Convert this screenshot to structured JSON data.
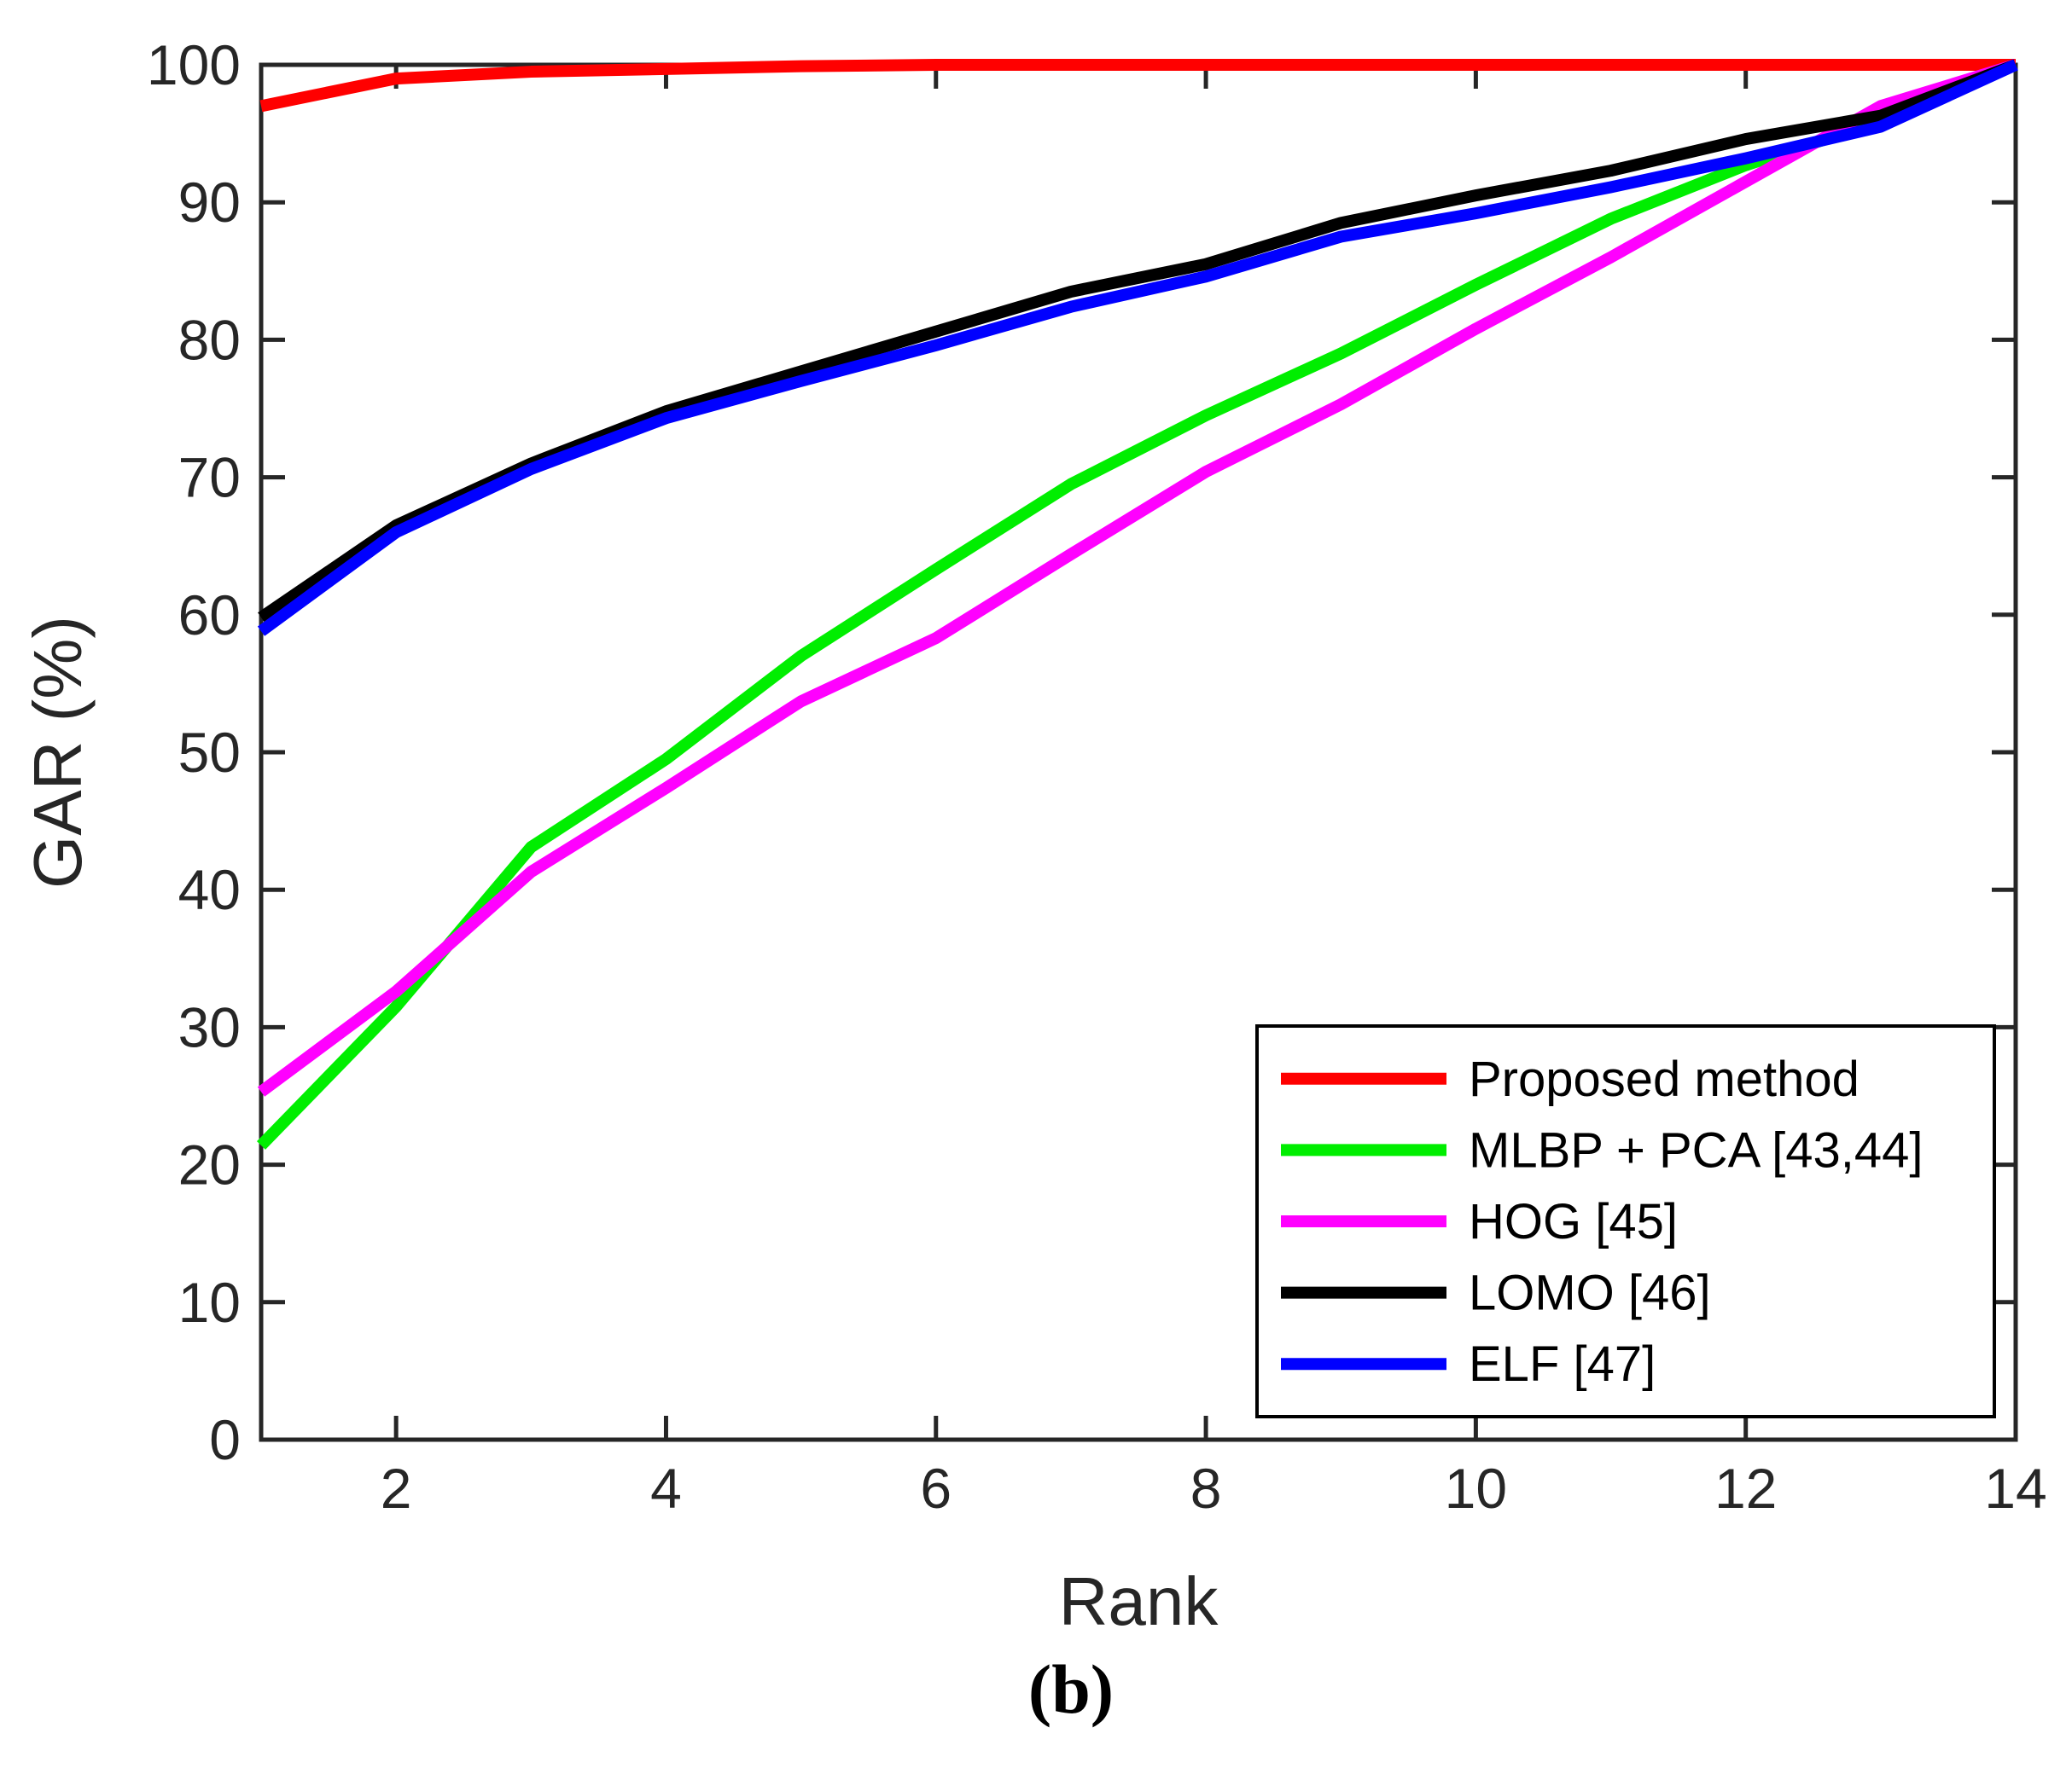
{
  "figure": {
    "caption": "(b)"
  },
  "chart_data": {
    "type": "line",
    "title": "",
    "xlabel": "Rank",
    "ylabel": "GAR (%)",
    "xlim": [
      1,
      14
    ],
    "ylim": [
      0,
      100
    ],
    "xticks": [
      2,
      4,
      6,
      8,
      10,
      12,
      14
    ],
    "yticks": [
      0,
      10,
      20,
      30,
      40,
      50,
      60,
      70,
      80,
      90,
      100
    ],
    "grid": false,
    "legend_position": "bottom-right",
    "x": [
      1,
      2,
      3,
      4,
      5,
      6,
      7,
      8,
      9,
      10,
      11,
      12,
      13,
      14
    ],
    "series": [
      {
        "name": "Proposed method",
        "color": "#ff0000",
        "values": [
          97.0,
          99.0,
          99.5,
          99.7,
          99.9,
          100,
          100,
          100,
          100,
          100,
          100,
          100,
          100,
          100
        ]
      },
      {
        "name": "MLBP + PCA [43,44]",
        "color": "#00ee00",
        "values": [
          21.4,
          31.5,
          43.1,
          49.5,
          57.0,
          63.3,
          69.5,
          74.5,
          79.0,
          84.0,
          88.8,
          92.7,
          95.9,
          100
        ]
      },
      {
        "name": "HOG [45]",
        "color": "#ff00ff",
        "values": [
          25.3,
          32.6,
          41.3,
          47.4,
          53.7,
          58.3,
          64.4,
          70.4,
          75.3,
          80.8,
          86.0,
          91.5,
          97.0,
          100
        ]
      },
      {
        "name": "LOMO [46]",
        "color": "#000000",
        "values": [
          59.8,
          66.5,
          71.0,
          74.8,
          77.7,
          80.6,
          83.5,
          85.5,
          88.5,
          90.5,
          92.3,
          94.6,
          96.3,
          100
        ]
      },
      {
        "name": "ELF [47]",
        "color": "#0000ff",
        "values": [
          58.8,
          66.0,
          70.6,
          74.3,
          77.0,
          79.6,
          82.4,
          84.6,
          87.5,
          89.2,
          91.1,
          93.2,
          95.5,
          100
        ]
      }
    ]
  },
  "style": {
    "axis_color": "#262626",
    "background": "#ffffff",
    "legend_border": "#000000",
    "legend_background": "#ffffff"
  }
}
